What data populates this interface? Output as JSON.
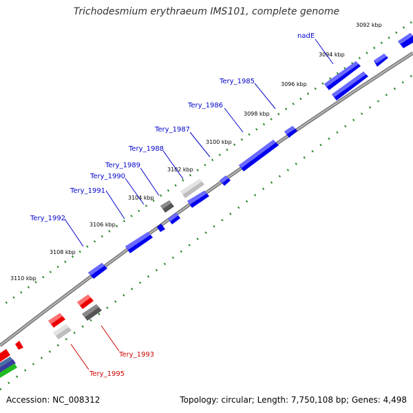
{
  "title": "Trichodesmium erythraeum IMS101, complete genome",
  "footer": {
    "accession": "Accession: NC_008312",
    "summary": "Topology: circular; Length: 7,750,108 bp; Genes: 4,498"
  },
  "colors": {
    "forward_gene": "#0000ff",
    "reverse_gene": "#ff0000",
    "forward_label": "#0000cc",
    "reverse_label": "#cc0000",
    "ticks": "#2a8a2a",
    "backbone": "#999999",
    "gray_feature": "#777777",
    "light_feature": "#cccccc"
  },
  "scale_labels": [
    "3092 kbp",
    "3094 kbp",
    "3096 kbp",
    "3098 kbp",
    "3100 kbp",
    "3102 kbp",
    "3104 kbp",
    "3106 kbp",
    "3108 kbp",
    "3110 kbp"
  ],
  "forward_gene_labels": [
    "nadE",
    "Tery_1985",
    "Tery_1986",
    "Tery_1987",
    "Tery_1988",
    "Tery_1989",
    "Tery_1990",
    "Tery_1991",
    "Tery_1992"
  ],
  "reverse_gene_labels": [
    "Tery_1993",
    "Tery_1995"
  ]
}
